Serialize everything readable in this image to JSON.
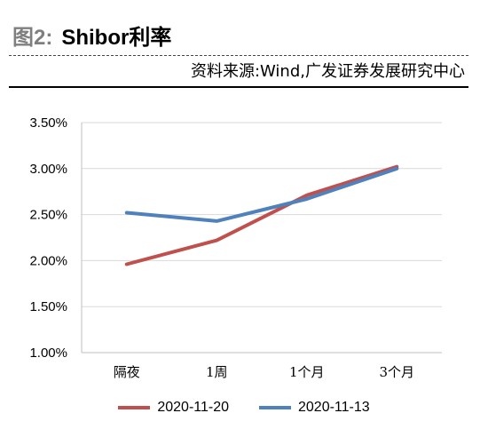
{
  "header": {
    "figure_label": "图2:",
    "figure_name": "Shibor利率",
    "source": "资料来源:Wind,广发证券发展研究中心"
  },
  "chart_data": {
    "type": "line",
    "categories": [
      "隔夜",
      "1周",
      "1个月",
      "3个月"
    ],
    "series": [
      {
        "name": "2020-11-20",
        "color": "#c0504d",
        "values": [
          1.96,
          2.22,
          2.71,
          3.02
        ]
      },
      {
        "name": "2020-11-13",
        "color": "#4f81bd",
        "values": [
          2.52,
          2.43,
          2.67,
          3.0
        ]
      }
    ],
    "yticks": [
      "1.00%",
      "1.50%",
      "2.00%",
      "2.50%",
      "3.00%",
      "3.50%"
    ],
    "ylim": [
      1.0,
      3.5
    ],
    "grid": true,
    "legend": "bottom"
  }
}
